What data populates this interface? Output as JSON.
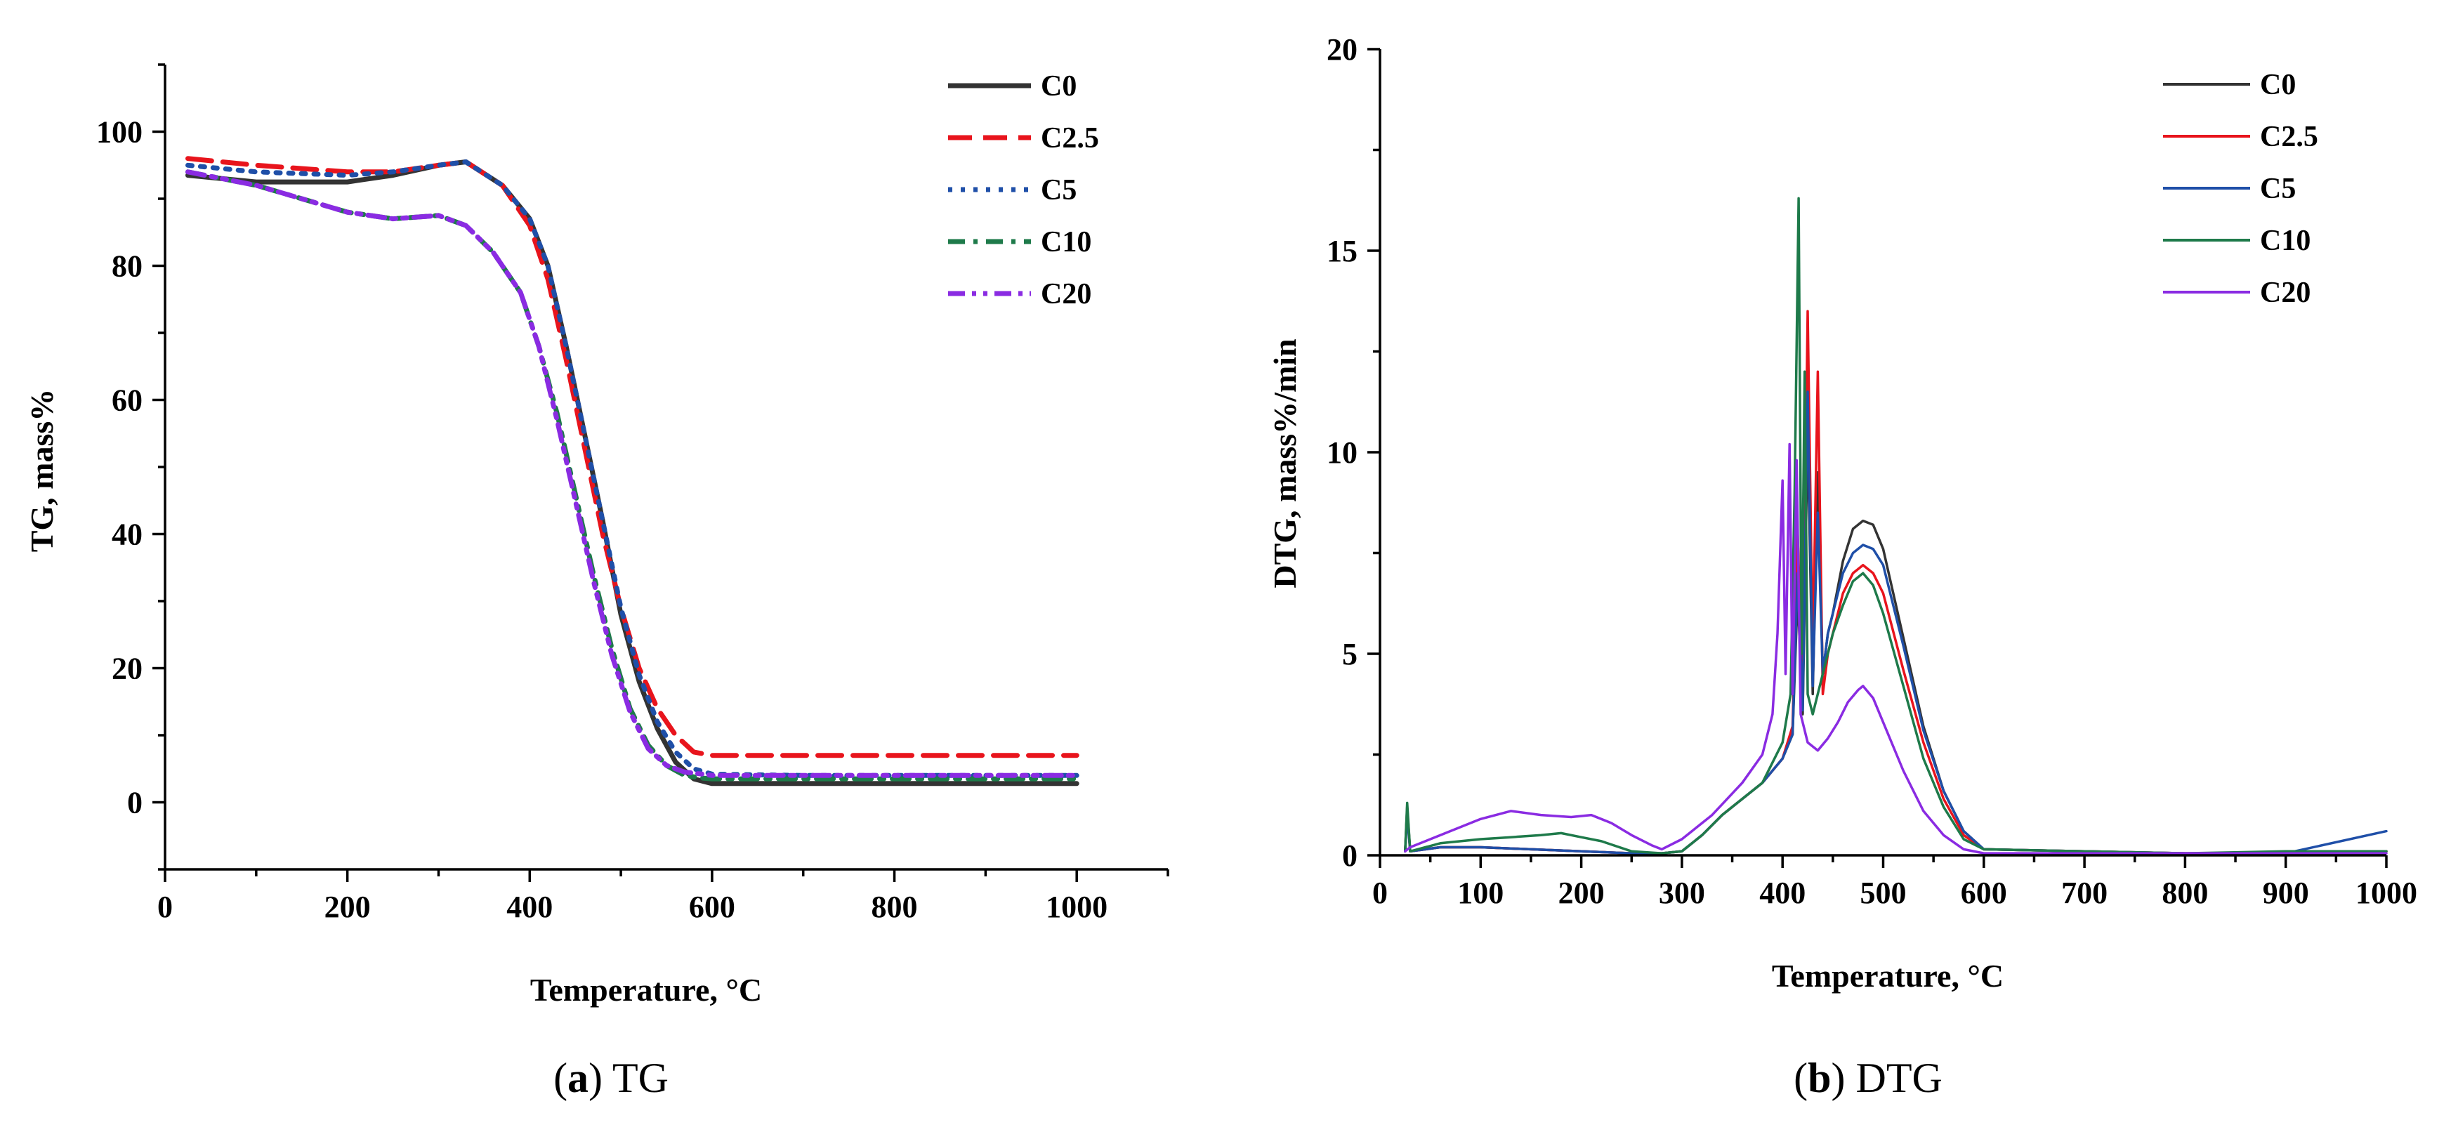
{
  "figure": {
    "colors": {
      "C0": "#333333",
      "C2.5": "#e8141c",
      "C5": "#1f4fa8",
      "C10": "#1e7a4a",
      "C20": "#8a2be2"
    }
  },
  "chart_data": [
    {
      "id": "tg",
      "type": "line",
      "caption_letter": "a",
      "caption_text": "TG",
      "xlabel": "Temperature, °C",
      "ylabel": "TG, mass%",
      "xlim": [
        0,
        1100
      ],
      "ylim": [
        -10,
        110
      ],
      "xticks": [
        0,
        200,
        400,
        600,
        800,
        1000
      ],
      "yticks": [
        0,
        20,
        40,
        60,
        80,
        100
      ],
      "legend_position": "top-right",
      "series": [
        {
          "name": "C0",
          "color": "#333333",
          "dash": "solid",
          "x": [
            25,
            100,
            200,
            250,
            300,
            330,
            370,
            400,
            420,
            440,
            460,
            480,
            500,
            520,
            540,
            560,
            580,
            600,
            700,
            800,
            900,
            1000
          ],
          "y": [
            93.5,
            92.5,
            92.5,
            93.5,
            95,
            95.5,
            92,
            87,
            80,
            68,
            55,
            42,
            28,
            18,
            11,
            6,
            3.5,
            2.8,
            2.8,
            2.8,
            2.8,
            2.8
          ]
        },
        {
          "name": "C2.5",
          "color": "#e8141c",
          "dash": "dashed",
          "x": [
            25,
            100,
            200,
            250,
            300,
            330,
            370,
            400,
            420,
            440,
            460,
            480,
            500,
            520,
            540,
            560,
            580,
            600,
            700,
            800,
            900,
            1000
          ],
          "y": [
            96,
            95,
            94,
            94,
            95,
            95.5,
            92,
            86,
            78,
            66,
            53,
            40,
            29,
            20,
            14,
            10,
            7.5,
            7,
            7,
            7,
            7,
            7
          ]
        },
        {
          "name": "C5",
          "color": "#1f4fa8",
          "dash": "dotted",
          "x": [
            25,
            100,
            200,
            250,
            300,
            330,
            370,
            400,
            420,
            440,
            460,
            480,
            500,
            520,
            540,
            560,
            580,
            600,
            700,
            800,
            900,
            1000
          ],
          "y": [
            95,
            94,
            93.5,
            94,
            95,
            95.5,
            92,
            87,
            80,
            68,
            55,
            42,
            29,
            19,
            12,
            7.5,
            5,
            4.2,
            4,
            4,
            4,
            4
          ]
        },
        {
          "name": "C10",
          "color": "#1e7a4a",
          "dash": "dashdot",
          "x": [
            25,
            100,
            150,
            200,
            250,
            300,
            330,
            360,
            390,
            410,
            430,
            450,
            470,
            490,
            510,
            530,
            550,
            570,
            590,
            600,
            700,
            800,
            900,
            1000
          ],
          "y": [
            94,
            92,
            90,
            88,
            87,
            87.5,
            86,
            82,
            76,
            68,
            58,
            46,
            34,
            23,
            14,
            8.5,
            5.5,
            4,
            3.6,
            3.5,
            3.5,
            3.5,
            3.5,
            3.5
          ]
        },
        {
          "name": "C20",
          "color": "#8a2be2",
          "dash": "dashdotdot",
          "x": [
            25,
            100,
            150,
            200,
            250,
            300,
            330,
            360,
            390,
            410,
            430,
            450,
            470,
            490,
            510,
            530,
            550,
            570,
            590,
            600,
            700,
            800,
            900,
            1000
          ],
          "y": [
            94,
            92,
            90,
            88,
            87,
            87.5,
            86,
            82,
            76,
            68,
            57,
            45,
            33,
            22,
            13.5,
            8,
            5.5,
            4.5,
            4.2,
            4,
            4,
            4,
            4,
            4
          ]
        }
      ]
    },
    {
      "id": "dtg",
      "type": "line",
      "caption_letter": "b",
      "caption_text": "DTG",
      "xlabel": "Temperature, °C",
      "ylabel": "DTG, mass%/min",
      "xlim": [
        0,
        1000
      ],
      "ylim": [
        0,
        20
      ],
      "xticks": [
        0,
        100,
        200,
        300,
        400,
        500,
        600,
        700,
        800,
        900,
        1000
      ],
      "yticks": [
        0,
        5,
        10,
        15,
        20
      ],
      "legend_position": "top-right",
      "series": [
        {
          "name": "C0",
          "color": "#333333",
          "x": [
            25,
            27,
            30,
            60,
            100,
            150,
            200,
            250,
            280,
            300,
            320,
            340,
            360,
            380,
            400,
            410,
            415,
            420,
            425,
            430,
            435,
            440,
            445,
            450,
            460,
            470,
            480,
            490,
            500,
            520,
            540,
            560,
            580,
            600,
            700,
            800,
            900,
            1000
          ],
          "y": [
            0.1,
            1.2,
            0.1,
            0.2,
            0.2,
            0.15,
            0.1,
            0.05,
            0.05,
            0.1,
            0.5,
            1.0,
            1.4,
            1.8,
            2.4,
            3.0,
            6.5,
            3.5,
            10.5,
            4.0,
            9.5,
            4.5,
            5.5,
            6.0,
            7.3,
            8.1,
            8.3,
            8.2,
            7.6,
            5.4,
            3.2,
            1.6,
            0.6,
            0.15,
            0.1,
            0.05,
            0.05,
            0.1
          ]
        },
        {
          "name": "C2.5",
          "color": "#e8141c",
          "x": [
            25,
            27,
            30,
            60,
            100,
            150,
            200,
            250,
            280,
            300,
            320,
            340,
            360,
            380,
            400,
            410,
            415,
            420,
            425,
            430,
            435,
            440,
            445,
            450,
            460,
            470,
            480,
            490,
            500,
            520,
            540,
            560,
            580,
            600,
            700,
            800,
            900,
            1000
          ],
          "y": [
            0.1,
            1.1,
            0.1,
            0.2,
            0.2,
            0.15,
            0.1,
            0.05,
            0.05,
            0.1,
            0.5,
            1.0,
            1.4,
            1.8,
            2.4,
            3.2,
            8.0,
            4.0,
            13.5,
            5.0,
            12.0,
            4.0,
            5.0,
            5.5,
            6.5,
            7.0,
            7.2,
            7.0,
            6.5,
            4.6,
            2.8,
            1.4,
            0.5,
            0.15,
            0.1,
            0.05,
            0.05,
            0.1
          ]
        },
        {
          "name": "C5",
          "color": "#1f4fa8",
          "x": [
            25,
            27,
            30,
            60,
            100,
            150,
            200,
            250,
            280,
            300,
            320,
            340,
            360,
            380,
            400,
            410,
            415,
            420,
            425,
            430,
            435,
            440,
            445,
            450,
            460,
            470,
            480,
            490,
            500,
            520,
            540,
            560,
            580,
            600,
            700,
            800,
            900,
            1000
          ],
          "y": [
            0.1,
            1.0,
            0.1,
            0.2,
            0.2,
            0.15,
            0.1,
            0.05,
            0.05,
            0.1,
            0.5,
            1.0,
            1.4,
            1.8,
            2.4,
            3.0,
            7.0,
            3.6,
            11.5,
            4.2,
            8.5,
            4.5,
            5.5,
            6.0,
            7.0,
            7.5,
            7.7,
            7.6,
            7.2,
            5.2,
            3.1,
            1.6,
            0.6,
            0.15,
            0.1,
            0.05,
            0.05,
            0.6
          ]
        },
        {
          "name": "C10",
          "color": "#1e7a4a",
          "x": [
            25,
            27,
            30,
            60,
            100,
            130,
            160,
            180,
            200,
            220,
            250,
            280,
            300,
            320,
            340,
            360,
            380,
            400,
            408,
            412,
            416,
            419,
            422,
            425,
            430,
            440,
            450,
            460,
            470,
            480,
            490,
            500,
            520,
            540,
            560,
            580,
            600,
            700,
            800,
            900,
            1000
          ],
          "y": [
            0.1,
            1.3,
            0.1,
            0.3,
            0.4,
            0.45,
            0.5,
            0.55,
            0.45,
            0.35,
            0.1,
            0.05,
            0.1,
            0.5,
            1.0,
            1.4,
            1.8,
            2.8,
            4.0,
            9.0,
            16.3,
            5.0,
            12.0,
            4.0,
            3.5,
            4.5,
            5.5,
            6.2,
            6.8,
            7.0,
            6.7,
            6.0,
            4.2,
            2.4,
            1.2,
            0.4,
            0.15,
            0.1,
            0.05,
            0.1,
            0.1
          ]
        },
        {
          "name": "C20",
          "color": "#8a2be2",
          "x": [
            25,
            30,
            60,
            100,
            130,
            160,
            190,
            210,
            230,
            250,
            270,
            280,
            300,
            330,
            360,
            380,
            390,
            395,
            400,
            403,
            407,
            410,
            414,
            418,
            425,
            435,
            445,
            455,
            465,
            475,
            480,
            490,
            500,
            520,
            540,
            560,
            580,
            600,
            700,
            800,
            900,
            1000
          ],
          "y": [
            0.1,
            0.2,
            0.5,
            0.9,
            1.1,
            1.0,
            0.95,
            1.0,
            0.8,
            0.5,
            0.25,
            0.15,
            0.4,
            1.0,
            1.8,
            2.5,
            3.5,
            5.5,
            9.3,
            4.5,
            10.2,
            4.0,
            9.8,
            3.5,
            2.8,
            2.6,
            2.9,
            3.3,
            3.8,
            4.1,
            4.2,
            3.9,
            3.3,
            2.1,
            1.1,
            0.5,
            0.15,
            0.05,
            0.05,
            0.05,
            0.05,
            0.05
          ]
        }
      ]
    }
  ]
}
